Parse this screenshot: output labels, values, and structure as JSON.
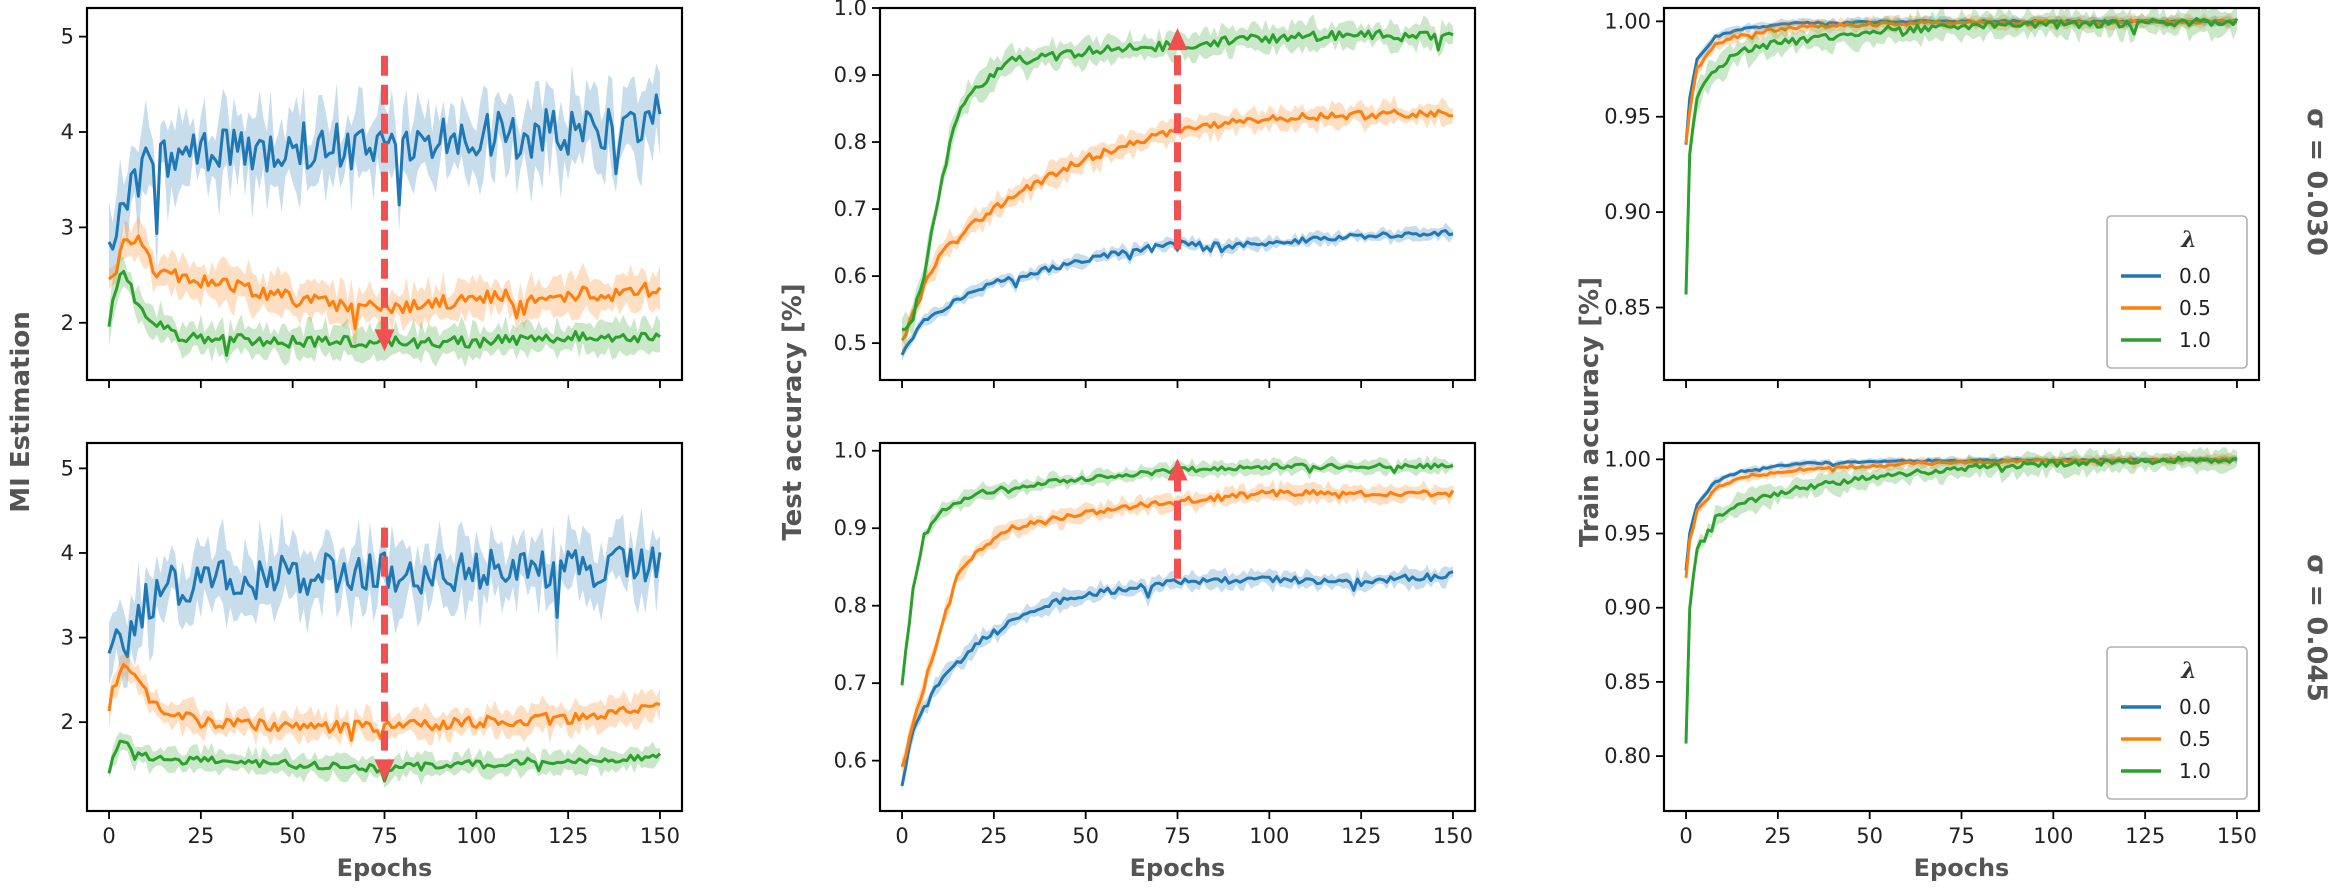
{
  "figure": {
    "row_titles": [
      "σ = 0.030",
      "σ = 0.045"
    ],
    "legend_title": "λ"
  },
  "chart_data": [
    {
      "id": "mi_sigma_030",
      "type": "line",
      "column": 0,
      "row": 0,
      "xlabel": "",
      "ylabel": "",
      "xlim": [
        -6,
        156
      ],
      "ylim": [
        1.4,
        5.3
      ],
      "xticks": [
        0,
        25,
        50,
        75,
        100,
        125,
        150
      ],
      "show_xticklabels": false,
      "yticks": [
        2,
        3,
        4,
        5
      ],
      "ytick_labels": [
        "2",
        "3",
        "4",
        "5"
      ],
      "arrow": {
        "x": 75,
        "y_from": 4.8,
        "y_to": 1.7,
        "direction": "down"
      },
      "series": [
        {
          "name": "0.0",
          "color": "#1f77b4",
          "noise": 0.25,
          "band": 0.35,
          "points": [
            [
              0,
              2.7
            ],
            [
              2,
              3.1
            ],
            [
              6,
              3.4
            ],
            [
              10,
              3.6
            ],
            [
              15,
              3.75
            ],
            [
              25,
              3.8
            ],
            [
              50,
              3.85
            ],
            [
              75,
              3.85
            ],
            [
              100,
              3.95
            ],
            [
              125,
              4.0
            ],
            [
              150,
              4.15
            ]
          ]
        },
        {
          "name": "0.5",
          "color": "#ff7f0e",
          "noise": 0.08,
          "band": 0.18,
          "points": [
            [
              0,
              2.4
            ],
            [
              4,
              2.8
            ],
            [
              8,
              2.85
            ],
            [
              12,
              2.55
            ],
            [
              25,
              2.45
            ],
            [
              50,
              2.25
            ],
            [
              75,
              2.15
            ],
            [
              100,
              2.25
            ],
            [
              125,
              2.3
            ],
            [
              150,
              2.35
            ]
          ]
        },
        {
          "name": "1.0",
          "color": "#2ca02c",
          "noise": 0.06,
          "band": 0.15,
          "points": [
            [
              0,
              2.0
            ],
            [
              3,
              2.55
            ],
            [
              6,
              2.35
            ],
            [
              10,
              2.05
            ],
            [
              20,
              1.85
            ],
            [
              50,
              1.8
            ],
            [
              75,
              1.8
            ],
            [
              100,
              1.8
            ],
            [
              125,
              1.85
            ],
            [
              150,
              1.85
            ]
          ]
        }
      ]
    },
    {
      "id": "mi_sigma_045",
      "type": "line",
      "column": 0,
      "row": 1,
      "xlabel": "Epochs",
      "ylabel": "",
      "xlim": [
        -6,
        156
      ],
      "ylim": [
        0.95,
        5.3
      ],
      "xticks": [
        0,
        25,
        50,
        75,
        100,
        125,
        150
      ],
      "show_xticklabels": true,
      "xtick_labels": [
        "0",
        "25",
        "50",
        "75",
        "100",
        "125",
        "150"
      ],
      "yticks": [
        2,
        3,
        4,
        5
      ],
      "ytick_labels": [
        "2",
        "3",
        "4",
        "5"
      ],
      "arrow": {
        "x": 75,
        "y_from": 4.3,
        "y_to": 1.3,
        "direction": "down"
      },
      "series": [
        {
          "name": "0.0",
          "color": "#1f77b4",
          "noise": 0.25,
          "band": 0.35,
          "points": [
            [
              0,
              2.6
            ],
            [
              3,
              3.0
            ],
            [
              8,
              3.3
            ],
            [
              15,
              3.6
            ],
            [
              25,
              3.7
            ],
            [
              50,
              3.75
            ],
            [
              75,
              3.75
            ],
            [
              100,
              3.8
            ],
            [
              125,
              3.8
            ],
            [
              150,
              3.85
            ]
          ]
        },
        {
          "name": "0.5",
          "color": "#ff7f0e",
          "noise": 0.07,
          "band": 0.15,
          "points": [
            [
              0,
              2.2
            ],
            [
              3,
              2.65
            ],
            [
              7,
              2.6
            ],
            [
              12,
              2.2
            ],
            [
              25,
              2.0
            ],
            [
              50,
              1.95
            ],
            [
              75,
              1.95
            ],
            [
              100,
              2.0
            ],
            [
              125,
              2.05
            ],
            [
              150,
              2.2
            ]
          ]
        },
        {
          "name": "1.0",
          "color": "#2ca02c",
          "noise": 0.05,
          "band": 0.12,
          "points": [
            [
              0,
              1.4
            ],
            [
              3,
              1.8
            ],
            [
              7,
              1.65
            ],
            [
              12,
              1.55
            ],
            [
              25,
              1.55
            ],
            [
              50,
              1.5
            ],
            [
              75,
              1.45
            ],
            [
              100,
              1.5
            ],
            [
              125,
              1.55
            ],
            [
              150,
              1.6
            ]
          ]
        }
      ]
    },
    {
      "id": "test_sigma_030",
      "type": "line",
      "column": 1,
      "row": 0,
      "xlabel": "",
      "ylabel": "",
      "xlim": [
        -6,
        156
      ],
      "ylim": [
        0.445,
        1.0
      ],
      "xticks": [
        0,
        25,
        50,
        75,
        100,
        125,
        150
      ],
      "show_xticklabels": false,
      "yticks": [
        0.5,
        0.6,
        0.7,
        0.8,
        0.9,
        1.0
      ],
      "ytick_labels": [
        "0.5",
        "0.6",
        "0.7",
        "0.8",
        "0.9",
        "1.0"
      ],
      "arrow": {
        "x": 75,
        "y_from": 0.64,
        "y_to": 0.97,
        "direction": "up"
      },
      "series": [
        {
          "name": "0.0",
          "color": "#1f77b4",
          "noise": 0.004,
          "band": 0.008,
          "points": [
            [
              0,
              0.48
            ],
            [
              5,
              0.53
            ],
            [
              15,
              0.565
            ],
            [
              25,
              0.59
            ],
            [
              50,
              0.625
            ],
            [
              75,
              0.65
            ],
            [
              90,
              0.645
            ],
            [
              100,
              0.65
            ],
            [
              125,
              0.66
            ],
            [
              150,
              0.665
            ]
          ]
        },
        {
          "name": "0.5",
          "color": "#ff7f0e",
          "noise": 0.006,
          "band": 0.015,
          "points": [
            [
              0,
              0.5
            ],
            [
              5,
              0.57
            ],
            [
              10,
              0.63
            ],
            [
              20,
              0.68
            ],
            [
              30,
              0.72
            ],
            [
              50,
              0.775
            ],
            [
              75,
              0.82
            ],
            [
              100,
              0.835
            ],
            [
              125,
              0.84
            ],
            [
              150,
              0.845
            ]
          ]
        },
        {
          "name": "1.0",
          "color": "#2ca02c",
          "noise": 0.007,
          "band": 0.018,
          "points": [
            [
              0,
              0.52
            ],
            [
              3,
              0.54
            ],
            [
              6,
              0.6
            ],
            [
              10,
              0.72
            ],
            [
              15,
              0.84
            ],
            [
              20,
              0.88
            ],
            [
              25,
              0.9
            ],
            [
              30,
              0.92
            ],
            [
              50,
              0.935
            ],
            [
              75,
              0.945
            ],
            [
              100,
              0.955
            ],
            [
              125,
              0.96
            ],
            [
              150,
              0.96
            ]
          ]
        }
      ]
    },
    {
      "id": "test_sigma_045",
      "type": "line",
      "column": 1,
      "row": 1,
      "xlabel": "Epochs",
      "ylabel": "",
      "xlim": [
        -6,
        156
      ],
      "ylim": [
        0.535,
        1.01
      ],
      "xticks": [
        0,
        25,
        50,
        75,
        100,
        125,
        150
      ],
      "show_xticklabels": true,
      "xtick_labels": [
        "0",
        "25",
        "50",
        "75",
        "100",
        "125",
        "150"
      ],
      "yticks": [
        0.6,
        0.7,
        0.8,
        0.9,
        1.0
      ],
      "ytick_labels": [
        "0.6",
        "0.7",
        "0.8",
        "0.9",
        "1.0"
      ],
      "arrow": {
        "x": 75,
        "y_from": 0.835,
        "y_to": 0.99,
        "direction": "up"
      },
      "series": [
        {
          "name": "0.0",
          "color": "#1f77b4",
          "noise": 0.004,
          "band": 0.01,
          "points": [
            [
              0,
              0.57
            ],
            [
              3,
              0.64
            ],
            [
              10,
              0.7
            ],
            [
              20,
              0.75
            ],
            [
              35,
              0.795
            ],
            [
              50,
              0.815
            ],
            [
              75,
              0.83
            ],
            [
              100,
              0.835
            ],
            [
              120,
              0.83
            ],
            [
              150,
              0.84
            ]
          ]
        },
        {
          "name": "0.5",
          "color": "#ff7f0e",
          "noise": 0.004,
          "band": 0.01,
          "points": [
            [
              0,
              0.59
            ],
            [
              3,
              0.65
            ],
            [
              10,
              0.76
            ],
            [
              15,
              0.84
            ],
            [
              20,
              0.87
            ],
            [
              30,
              0.9
            ],
            [
              50,
              0.92
            ],
            [
              75,
              0.935
            ],
            [
              100,
              0.945
            ],
            [
              150,
              0.945
            ]
          ]
        },
        {
          "name": "1.0",
          "color": "#2ca02c",
          "noise": 0.003,
          "band": 0.008,
          "points": [
            [
              0,
              0.7
            ],
            [
              3,
              0.82
            ],
            [
              6,
              0.89
            ],
            [
              10,
              0.92
            ],
            [
              20,
              0.945
            ],
            [
              40,
              0.96
            ],
            [
              75,
              0.975
            ],
            [
              100,
              0.98
            ],
            [
              150,
              0.98
            ]
          ]
        }
      ]
    },
    {
      "id": "train_sigma_030",
      "type": "line",
      "column": 2,
      "row": 0,
      "xlabel": "",
      "ylabel": "",
      "xlim": [
        -6,
        156
      ],
      "ylim": [
        0.812,
        1.007
      ],
      "xticks": [
        0,
        25,
        50,
        75,
        100,
        125,
        150
      ],
      "show_xticklabels": false,
      "yticks": [
        0.85,
        0.9,
        0.95,
        1.0
      ],
      "ytick_labels": [
        "0.85",
        "0.90",
        "0.95",
        "1.00"
      ],
      "legend": {
        "loc": "lower right",
        "entries": [
          "0.0",
          "0.5",
          "1.0"
        ]
      },
      "series": [
        {
          "name": "0.0",
          "color": "#1f77b4",
          "noise": 0.0005,
          "band": 0.002,
          "points": [
            [
              0,
              0.935
            ],
            [
              1,
              0.96
            ],
            [
              3,
              0.98
            ],
            [
              8,
              0.992
            ],
            [
              15,
              0.996
            ],
            [
              30,
              0.999
            ],
            [
              60,
              1.0
            ],
            [
              150,
              1.0
            ]
          ]
        },
        {
          "name": "0.5",
          "color": "#ff7f0e",
          "noise": 0.001,
          "band": 0.003,
          "points": [
            [
              0,
              0.935
            ],
            [
              1,
              0.955
            ],
            [
              3,
              0.975
            ],
            [
              8,
              0.988
            ],
            [
              15,
              0.993
            ],
            [
              30,
              0.997
            ],
            [
              60,
              0.999
            ],
            [
              150,
              1.0
            ]
          ]
        },
        {
          "name": "1.0",
          "color": "#2ca02c",
          "noise": 0.002,
          "band": 0.006,
          "points": [
            [
              0,
              0.855
            ],
            [
              1,
              0.93
            ],
            [
              3,
              0.96
            ],
            [
              8,
              0.975
            ],
            [
              15,
              0.985
            ],
            [
              30,
              0.99
            ],
            [
              50,
              0.995
            ],
            [
              80,
              0.998
            ],
            [
              120,
              0.999
            ],
            [
              150,
              1.0
            ]
          ]
        }
      ]
    },
    {
      "id": "train_sigma_045",
      "type": "line",
      "column": 2,
      "row": 1,
      "xlabel": "Epochs",
      "ylabel": "",
      "xlim": [
        -6,
        156
      ],
      "ylim": [
        0.763,
        1.011
      ],
      "xticks": [
        0,
        25,
        50,
        75,
        100,
        125,
        150
      ],
      "show_xticklabels": true,
      "xtick_labels": [
        "0",
        "25",
        "50",
        "75",
        "100",
        "125",
        "150"
      ],
      "yticks": [
        0.8,
        0.85,
        0.9,
        0.95,
        1.0
      ],
      "ytick_labels": [
        "0.80",
        "0.85",
        "0.90",
        "0.95",
        "1.00"
      ],
      "legend": {
        "loc": "lower right",
        "entries": [
          "0.0",
          "0.5",
          "1.0"
        ]
      },
      "series": [
        {
          "name": "0.0",
          "color": "#1f77b4",
          "noise": 0.0006,
          "band": 0.002,
          "points": [
            [
              0,
              0.925
            ],
            [
              1,
              0.95
            ],
            [
              3,
              0.97
            ],
            [
              8,
              0.985
            ],
            [
              15,
              0.992
            ],
            [
              30,
              0.997
            ],
            [
              60,
              0.999
            ],
            [
              150,
              1.0
            ]
          ]
        },
        {
          "name": "0.5",
          "color": "#ff7f0e",
          "noise": 0.001,
          "band": 0.003,
          "points": [
            [
              0,
              0.92
            ],
            [
              1,
              0.945
            ],
            [
              3,
              0.965
            ],
            [
              8,
              0.98
            ],
            [
              15,
              0.988
            ],
            [
              30,
              0.993
            ],
            [
              60,
              0.997
            ],
            [
              100,
              0.999
            ],
            [
              150,
              1.0
            ]
          ]
        },
        {
          "name": "1.0",
          "color": "#2ca02c",
          "noise": 0.002,
          "band": 0.006,
          "points": [
            [
              0,
              0.81
            ],
            [
              1,
              0.9
            ],
            [
              3,
              0.94
            ],
            [
              8,
              0.96
            ],
            [
              15,
              0.97
            ],
            [
              30,
              0.98
            ],
            [
              50,
              0.988
            ],
            [
              80,
              0.995
            ],
            [
              120,
              0.999
            ],
            [
              150,
              1.0
            ]
          ]
        }
      ]
    }
  ],
  "column_ylabels": [
    "MI Estimation",
    "Test accuracy [%]",
    "Train accuracy [%]"
  ],
  "colors": {
    "series_0": "#1f77b4",
    "series_1": "#ff7f0e",
    "series_2": "#2ca02c",
    "arrow": "#f05050"
  }
}
